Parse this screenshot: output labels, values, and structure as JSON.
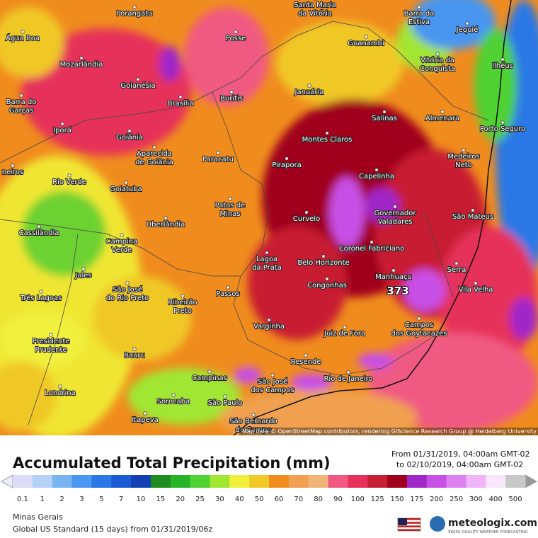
{
  "map": {
    "cities": [
      {
        "lines": [
          "Porangatu"
        ]
      },
      {
        "lines": [
          "Santa Maria",
          "da Vitória"
        ]
      },
      {
        "lines": [
          "Barra da",
          "Estiva"
        ]
      },
      {
        "lines": [
          "Jequié"
        ]
      },
      {
        "lines": [
          "Água Boa"
        ]
      },
      {
        "lines": [
          "Posse"
        ]
      },
      {
        "lines": [
          "Guanambi"
        ]
      },
      {
        "lines": [
          "Mozarlândia"
        ]
      },
      {
        "lines": [
          "Vitória da",
          "Conquista"
        ]
      },
      {
        "lines": [
          "Ilhéus"
        ]
      },
      {
        "lines": [
          "Goianésia"
        ]
      },
      {
        "lines": [
          "Januária"
        ]
      },
      {
        "lines": [
          "Barra do",
          "Garças"
        ]
      },
      {
        "lines": [
          "Brasília"
        ]
      },
      {
        "lines": [
          "Buritis"
        ]
      },
      {
        "lines": [
          "Salinas"
        ]
      },
      {
        "lines": [
          "Almenara"
        ]
      },
      {
        "lines": [
          "Iporá"
        ]
      },
      {
        "lines": [
          "Goiânia"
        ]
      },
      {
        "lines": [
          "Porto Seguro"
        ]
      },
      {
        "lines": [
          "Montes Claros"
        ]
      },
      {
        "lines": [
          "Aparecida",
          "de Goiânia"
        ]
      },
      {
        "lines": [
          "Medeiros",
          "Neto"
        ]
      },
      {
        "lines": [
          "Paracatu"
        ]
      },
      {
        "lines": [
          "Pirapora"
        ]
      },
      {
        "lines": [
          "Capelinha"
        ]
      },
      {
        "lines": [
          "neiros"
        ]
      },
      {
        "lines": [
          "Rio Verde"
        ]
      },
      {
        "lines": [
          "Goiatuba"
        ]
      },
      {
        "lines": [
          "Patos de",
          "Minas"
        ]
      },
      {
        "lines": [
          "Governador",
          "Valadares"
        ]
      },
      {
        "lines": [
          "São Mateus"
        ]
      },
      {
        "lines": [
          "Curvelo"
        ]
      },
      {
        "lines": [
          "Uberlândia"
        ]
      },
      {
        "lines": [
          "Cassilândia"
        ]
      },
      {
        "lines": [
          "Campina",
          "Verde"
        ]
      },
      {
        "lines": [
          "Coronel Fabriciano"
        ]
      },
      {
        "lines": [
          "Lagoa",
          "da Prata"
        ]
      },
      {
        "lines": [
          "Belo Horizonte"
        ]
      },
      {
        "lines": [
          "Serra"
        ]
      },
      {
        "lines": [
          "Jales"
        ]
      },
      {
        "lines": [
          "Manhuaçu"
        ]
      },
      {
        "lines": [
          "São José",
          "do Rio Preto"
        ]
      },
      {
        "lines": [
          "Congonhas"
        ]
      },
      {
        "lines": [
          "Vila Velha"
        ]
      },
      {
        "lines": [
          "Três Lagoas"
        ]
      },
      {
        "lines": [
          "Passos"
        ]
      },
      {
        "lines": [
          "Ribeirão",
          "Preto"
        ]
      },
      {
        "lines": [
          "Varginha"
        ]
      },
      {
        "lines": [
          "Juiz de Fora"
        ]
      },
      {
        "lines": [
          "Campos",
          "dos Goytacazes"
        ]
      },
      {
        "lines": [
          "Presidente",
          "Prudente"
        ]
      },
      {
        "lines": [
          "Bauru"
        ]
      },
      {
        "lines": [
          "Resende"
        ]
      },
      {
        "lines": [
          "Campinas"
        ]
      },
      {
        "lines": [
          "São José",
          "dos Campos"
        ]
      },
      {
        "lines": [
          "Rio de Janeiro"
        ]
      },
      {
        "lines": [
          "Londrina"
        ]
      },
      {
        "lines": [
          "Sorocaba"
        ]
      },
      {
        "lines": [
          "São Paulo"
        ]
      },
      {
        "lines": [
          "Itapeva"
        ]
      },
      {
        "lines": [
          "São Bernardo",
          "do Campo"
        ]
      }
    ],
    "max_label": 373,
    "attribution": "Map data © OpenStreetMap contributors, rendering GIScience Research Group @ Heidelberg University"
  },
  "legend": {
    "title": "Accumulated Total Precipitation (mm)",
    "period": [
      "From 01/31/2019, 04:00am GMT-02",
      "to 02/10/2019, 04:00am GMT-02"
    ],
    "labels": [
      0.1,
      1,
      2,
      3,
      5,
      7,
      10,
      15,
      20,
      25,
      30,
      40,
      50,
      60,
      70,
      80,
      90,
      100,
      125,
      150,
      175,
      200,
      250,
      300,
      400,
      500
    ],
    "colors": [
      "#dcdcf6",
      "#b4d2f8",
      "#78b4f0",
      "#4a96f0",
      "#2a78e6",
      "#1a5ad2",
      "#1440b4",
      "#1e8c1e",
      "#28b428",
      "#50d232",
      "#a0e632",
      "#f0f03c",
      "#f0c828",
      "#f08c1e",
      "#f0a050",
      "#f0b478",
      "#f05a82",
      "#e6325a",
      "#c81e32",
      "#a0001e",
      "#a028c8",
      "#c850e6",
      "#dc82f0",
      "#f0b4f8",
      "#f8e6fa",
      "#c8c8c8"
    ]
  },
  "footer": {
    "region": "Minas Gerais",
    "model": "Global US Standard (15 days) from 01/31/2019/06z",
    "brand": "meteologix.com",
    "tagline": "SWISS QUALITY WEATHER FORECASTING"
  }
}
